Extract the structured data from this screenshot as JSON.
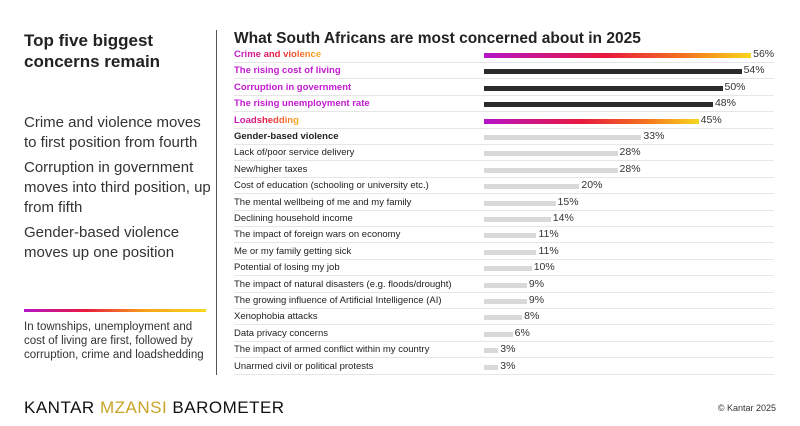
{
  "left": {
    "title": "Top five biggest concerns remain",
    "points": [
      "Crime and violence moves to first position from fourth",
      "Corruption in government moves into third position, up from fifth",
      "Gender-based violence moves up one position"
    ],
    "note": "In townships, unemployment and cost of living are first, followed by corruption, crime and loadshedding"
  },
  "chart_data": {
    "type": "bar",
    "orientation": "horizontal",
    "title": "What South Africans are most concerned about in 2025",
    "categories": [
      "Crime and violence",
      "The rising cost of living",
      "Corruption in government",
      "The rising unemployment rate",
      "Loadshedding",
      "Gender-based violence",
      "Lack of/poor service delivery",
      "New/higher taxes",
      "Cost of education (schooling or university etc.)",
      "The mental wellbeing of me and my family",
      "Declining household income",
      "The impact of foreign wars on economy",
      "Me or my family getting sick",
      "Potential of losing my job",
      "The impact of natural disasters (e.g. floods/drought)",
      "The growing influence of Artificial Intelligence (AI)",
      "Xenophobia attacks",
      "Data privacy concerns",
      "The impact of armed conflict within my country",
      "Unarmed civil or political protests"
    ],
    "values": [
      56,
      54,
      50,
      48,
      45,
      33,
      28,
      28,
      20,
      15,
      14,
      11,
      11,
      10,
      9,
      9,
      8,
      6,
      3,
      3
    ],
    "labels": [
      "56%",
      "54%",
      "50%",
      "48%",
      "45%",
      "33%",
      "28%",
      "28%",
      "20%",
      "15%",
      "14%",
      "11%",
      "11%",
      "10%",
      "9%",
      "9%",
      "8%",
      "6%",
      "3%",
      "3%"
    ],
    "unit": "%",
    "colors": {
      "gradient": [
        "#b515c9",
        "#e8183f",
        "#f9d71c"
      ],
      "dark": "#2b2b2b",
      "grey": "#d9d9d9",
      "highlight_label": "#c21ad0"
    }
  },
  "footer": {
    "logo": "KANTAR MZANSI BAROMETER",
    "logo_parts": [
      "KANTAR",
      "MZANSI",
      "BAROMETER"
    ],
    "copyright": "© Kantar 2025"
  }
}
